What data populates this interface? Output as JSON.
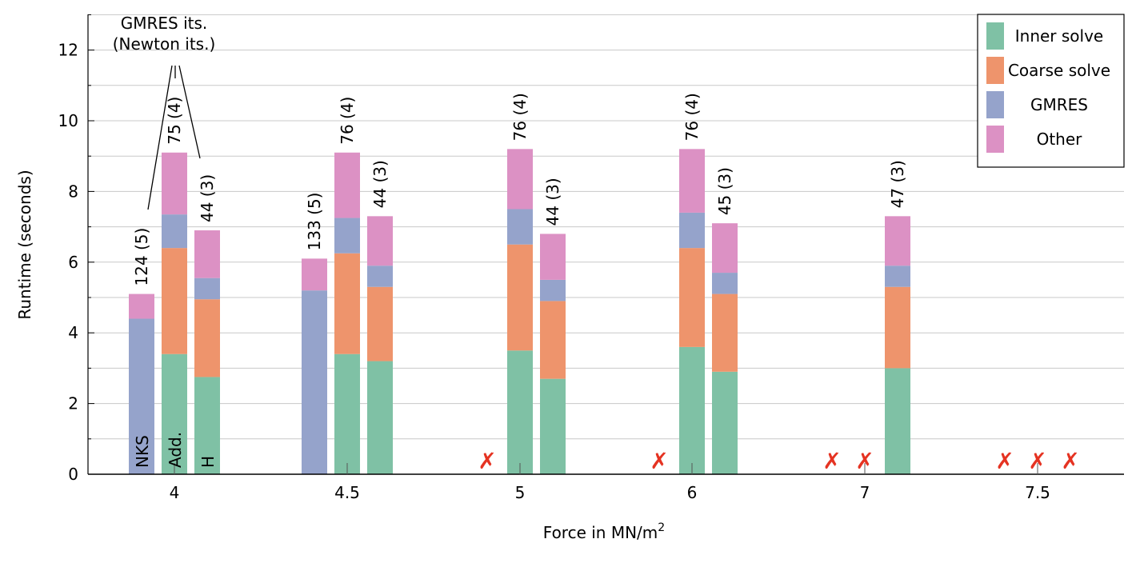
{
  "chart_data": {
    "type": "bar",
    "stacked": true,
    "xlabel": "Force in MN/m",
    "xlabel_superscript": "2",
    "ylabel": "Runtime (seconds)",
    "ylim": [
      0,
      13
    ],
    "yticks": [
      0,
      2,
      4,
      6,
      8,
      10,
      12
    ],
    "grid": "horizontal",
    "legend_placement": "top-right",
    "categories": [
      "4",
      "4.5",
      "5",
      "6",
      "7",
      "7.5"
    ],
    "solvers": [
      "NKS",
      "Add.",
      "H"
    ],
    "fail_symbol": "✗",
    "series": [
      {
        "name": "Inner solve",
        "color": "#7fc1a5"
      },
      {
        "name": "Coarse solve",
        "color": "#ee946c"
      },
      {
        "name": "GMRES",
        "color": "#95a3cb"
      },
      {
        "name": "Other",
        "color": "#dc91c4"
      }
    ],
    "bars": [
      {
        "category": "4",
        "solver": "NKS",
        "stack": [
          0,
          0,
          4.4,
          0.7
        ],
        "total": 5.1,
        "label": "124 (5)"
      },
      {
        "category": "4",
        "solver": "Add.",
        "stack": [
          3.4,
          3.0,
          0.95,
          1.75
        ],
        "total": 9.1,
        "label": "75 (4)"
      },
      {
        "category": "4",
        "solver": "H",
        "stack": [
          2.75,
          2.2,
          0.6,
          1.35
        ],
        "total": 6.9,
        "label": "44 (3)"
      },
      {
        "category": "4.5",
        "solver": "NKS",
        "stack": [
          0,
          0,
          5.2,
          0.9
        ],
        "total": 6.1,
        "label": "133 (5)"
      },
      {
        "category": "4.5",
        "solver": "Add.",
        "stack": [
          3.4,
          2.85,
          1.0,
          1.85
        ],
        "total": 9.1,
        "label": "76 (4)"
      },
      {
        "category": "4.5",
        "solver": "H",
        "stack": [
          3.2,
          2.1,
          0.6,
          1.4
        ],
        "total": 7.3,
        "label": "44 (3)"
      },
      {
        "category": "5",
        "solver": "NKS",
        "failed": true
      },
      {
        "category": "5",
        "solver": "Add.",
        "stack": [
          3.5,
          3.0,
          1.0,
          1.7
        ],
        "total": 9.2,
        "label": "76 (4)"
      },
      {
        "category": "5",
        "solver": "H",
        "stack": [
          2.7,
          2.2,
          0.6,
          1.3
        ],
        "total": 6.8,
        "label": "44 (3)"
      },
      {
        "category": "6",
        "solver": "NKS",
        "failed": true
      },
      {
        "category": "6",
        "solver": "Add.",
        "stack": [
          3.6,
          2.8,
          1.0,
          1.8
        ],
        "total": 9.2,
        "label": "76 (4)"
      },
      {
        "category": "6",
        "solver": "H",
        "stack": [
          2.9,
          2.2,
          0.6,
          1.4
        ],
        "total": 7.1,
        "label": "45 (3)"
      },
      {
        "category": "7",
        "solver": "NKS",
        "failed": true
      },
      {
        "category": "7",
        "solver": "Add.",
        "failed": true
      },
      {
        "category": "7",
        "solver": "H",
        "stack": [
          3.0,
          2.3,
          0.6,
          1.4
        ],
        "total": 7.3,
        "label": "47 (3)"
      },
      {
        "category": "7.5",
        "solver": "NKS",
        "failed": true
      },
      {
        "category": "7.5",
        "solver": "Add.",
        "failed": true
      },
      {
        "category": "7.5",
        "solver": "H",
        "failed": true
      }
    ],
    "annotation": {
      "line1": "GMRES its.",
      "line2": "(Newton its.)"
    }
  }
}
